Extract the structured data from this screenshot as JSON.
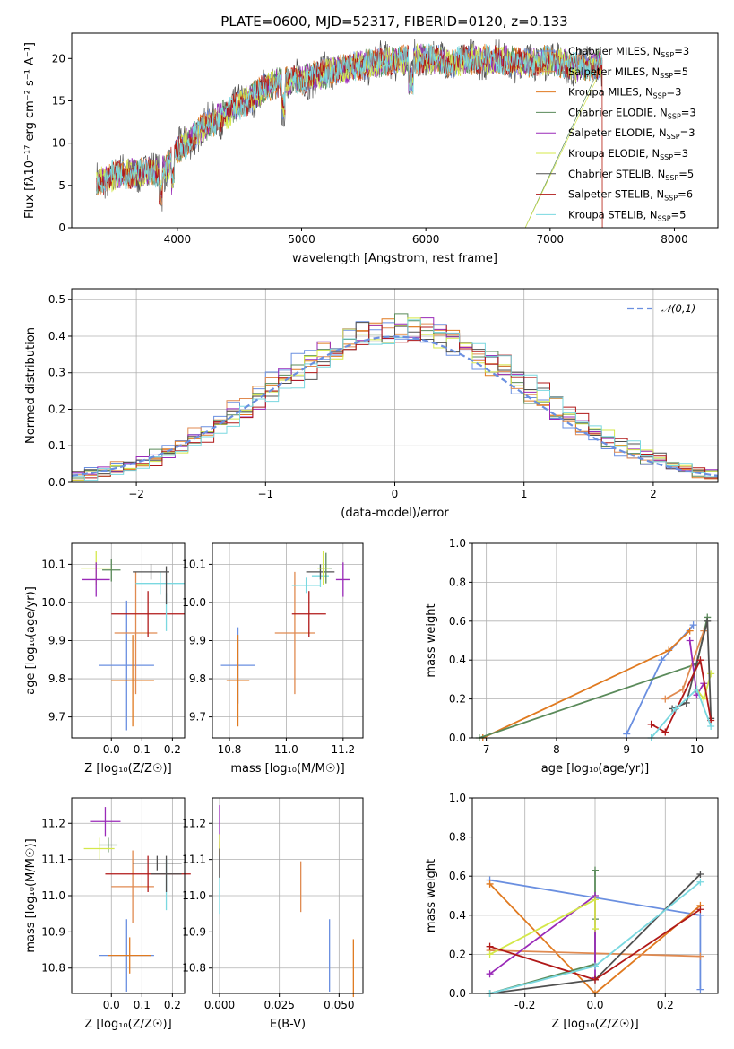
{
  "title": "PLATE=0600, MJD=52317, FIBERID=0120, z=0.133",
  "models": [
    {
      "name": "Chabrier MILES, Nₛₛₚ=3",
      "color": "#6a8fe0"
    },
    {
      "name": "Salpeter MILES, NSSP=5",
      "color": "#e08a50"
    },
    {
      "name": "Kroupa MILES, NSSP=3",
      "color": "#e07a20"
    },
    {
      "name": "Chabrier ELODIE, NSSP=3",
      "color": "#5a8a5a"
    },
    {
      "name": "Salpeter ELODIE, NSSP=3",
      "color": "#9a2ab8"
    },
    {
      "name": "Kroupa ELODIE, NSSP=3",
      "color": "#d4e84a"
    },
    {
      "name": "Chabrier STELIB, NSSP=5",
      "color": "#505050"
    },
    {
      "name": "Salpeter STELIB, NSSP=6",
      "color": "#b01818"
    },
    {
      "name": "Kroupa STELIB, NSSP=5",
      "color": "#7ad8e0"
    }
  ],
  "chart_data": [
    {
      "type": "line",
      "xlabel": "wavelength [Angstrom, rest frame]",
      "ylabel": "Flux [fλ10⁻¹⁷ erg cm⁻² s⁻¹ A⁻¹]",
      "xlim": [
        3150,
        8350
      ],
      "ylim": [
        0,
        23
      ],
      "xticks": [
        4000,
        5000,
        6000,
        7000,
        8000
      ],
      "yticks": [
        0,
        5,
        10,
        15,
        20
      ],
      "legend_position": "upper-right",
      "legend": [
        "Chabrier MILES, N",
        "Salpeter MILES, N",
        "Kroupa MILES, N",
        "Chabrier ELODIE, N",
        "Salpeter ELODIE, N",
        "Kroupa ELODIE, N",
        "Chabrier STELIB, N",
        "Salpeter STELIB, N",
        "Kroupa STELIB, N"
      ],
      "legend_nssp": [
        "3",
        "5",
        "3",
        "3",
        "3",
        "3",
        "5",
        "6",
        "5"
      ],
      "continuum": {
        "x": [
          3350,
          3500,
          3700,
          3900,
          4000,
          4200,
          4400,
          4600,
          4800,
          5000,
          5200,
          5400,
          5600,
          5800,
          6000,
          6200,
          6400,
          6600,
          6800,
          7000,
          7200,
          7400
        ],
        "y": [
          5.5,
          6.2,
          6.5,
          6.8,
          9.0,
          11.8,
          13.5,
          15.5,
          17.2,
          17.5,
          18.3,
          19.0,
          19.5,
          19.8,
          20.0,
          19.5,
          20.0,
          19.8,
          19.5,
          19.8,
          19.0,
          19.3
        ]
      }
    },
    {
      "type": "histogram",
      "xlabel": "(data-model)/error",
      "ylabel": "Normed distribution",
      "xlim": [
        -2.5,
        2.5
      ],
      "ylim": [
        0,
        0.53
      ],
      "xticks": [
        -2,
        -1,
        0,
        1,
        2
      ],
      "yticks": [
        0.0,
        0.1,
        0.2,
        0.3,
        0.4,
        0.5
      ],
      "legend": "𝒩(0,1)",
      "legend_position": "upper-right",
      "bin_width": 0.1
    },
    {
      "type": "errorbar",
      "xlabel": "Z [log₁₀(Z/Z☉)]",
      "ylabel": "age  [log₁₀(age/yr)]",
      "xlim": [
        -0.13,
        0.24
      ],
      "ylim": [
        9.645,
        10.155
      ],
      "xticks": [
        0.0,
        0.1,
        0.2
      ],
      "yticks": [
        9.7,
        9.8,
        9.9,
        10.0,
        10.1
      ],
      "points": [
        {
          "x": 0.05,
          "y": 9.835,
          "xerr": 0.09,
          "yerr": 0.17,
          "model": 0
        },
        {
          "x": 0.07,
          "y": 9.795,
          "xerr": 0.07,
          "yerr": 0.12,
          "model": 2
        },
        {
          "x": 0.08,
          "y": 9.92,
          "xerr": 0.07,
          "yerr": 0.16,
          "model": 1
        },
        {
          "x": 0.12,
          "y": 9.97,
          "xerr": 0.12,
          "yerr": 0.06,
          "model": 7
        },
        {
          "x": 0.18,
          "y": 9.975,
          "xerr": 0.0,
          "yerr": 0.05,
          "model": 8
        },
        {
          "x": 0.16,
          "y": 10.05,
          "xerr": 0.08,
          "yerr": 0.03,
          "model": 8
        },
        {
          "x": 0.13,
          "y": 10.08,
          "xerr": 0.06,
          "yerr": 0.02,
          "model": 6
        },
        {
          "x": 0.0,
          "y": 10.085,
          "xerr": 0.03,
          "yerr": 0.03,
          "model": 3
        },
        {
          "x": -0.05,
          "y": 10.09,
          "xerr": 0.05,
          "yerr": 0.045,
          "model": 5
        },
        {
          "x": -0.05,
          "y": 10.06,
          "xerr": 0.045,
          "yerr": 0.045,
          "model": 4
        },
        {
          "x": 0.18,
          "y": 10.045,
          "xerr": 0.0,
          "yerr": 0.05,
          "model": 6
        }
      ]
    },
    {
      "type": "errorbar",
      "xlabel": "mass [log₁₀(M/M☉)]",
      "ylabel": "",
      "xlim": [
        10.74,
        11.27
      ],
      "ylim": [
        9.645,
        10.155
      ],
      "xticks": [
        10.8,
        11.0,
        11.2
      ],
      "yticks": [
        9.7,
        9.8,
        9.9,
        10.0,
        10.1
      ],
      "points": [
        {
          "x": 10.83,
          "y": 9.835,
          "xerr": 0.06,
          "yerr": 0.1,
          "model": 0
        },
        {
          "x": 10.83,
          "y": 9.795,
          "xerr": 0.04,
          "yerr": 0.12,
          "model": 2
        },
        {
          "x": 11.03,
          "y": 9.92,
          "xerr": 0.07,
          "yerr": 0.16,
          "model": 1
        },
        {
          "x": 11.08,
          "y": 9.97,
          "xerr": 0.06,
          "yerr": 0.06,
          "model": 7
        },
        {
          "x": 11.12,
          "y": 10.07,
          "xerr": 0.03,
          "yerr": 0.03,
          "model": 8
        },
        {
          "x": 11.07,
          "y": 10.045,
          "xerr": 0.05,
          "yerr": 0.02,
          "model": 8
        },
        {
          "x": 11.12,
          "y": 10.08,
          "xerr": 0.05,
          "yerr": 0.02,
          "model": 6
        },
        {
          "x": 11.14,
          "y": 10.09,
          "xerr": 0.02,
          "yerr": 0.04,
          "model": 3
        },
        {
          "x": 11.13,
          "y": 10.09,
          "xerr": 0.02,
          "yerr": 0.045,
          "model": 5
        },
        {
          "x": 11.2,
          "y": 10.06,
          "xerr": 0.025,
          "yerr": 0.045,
          "model": 4
        }
      ]
    },
    {
      "type": "line",
      "xlabel": "age  [log₁₀(age/yr)]",
      "ylabel": "mass weight",
      "xlim": [
        6.8,
        10.3
      ],
      "ylim": [
        0,
        1
      ],
      "xticks": [
        7,
        8,
        9,
        10
      ],
      "yticks": [
        0.0,
        0.2,
        0.4,
        0.6,
        0.8,
        1.0
      ],
      "series": [
        {
          "model": 0,
          "x": [
            9.0,
            9.5,
            9.95
          ],
          "y": [
            0.02,
            0.4,
            0.58
          ]
        },
        {
          "model": 2,
          "x": [
            6.95,
            9.6,
            9.9
          ],
          "y": [
            0.0,
            0.45,
            0.55
          ]
        },
        {
          "model": 3,
          "x": [
            6.9,
            10.0,
            10.15
          ],
          "y": [
            0.0,
            0.38,
            0.62
          ]
        },
        {
          "model": 1,
          "x": [
            9.55,
            9.8,
            10.1
          ],
          "y": [
            0.2,
            0.25,
            0.55
          ]
        },
        {
          "model": 4,
          "x": [
            9.9,
            10.0,
            10.1
          ],
          "y": [
            0.5,
            0.22,
            0.28
          ]
        },
        {
          "model": 5,
          "x": [
            10.0,
            10.1,
            10.2
          ],
          "y": [
            0.25,
            0.2,
            0.33
          ]
        },
        {
          "model": 6,
          "x": [
            9.65,
            9.85,
            10.15,
            10.2
          ],
          "y": [
            0.15,
            0.18,
            0.6,
            0.1
          ]
        },
        {
          "model": 7,
          "x": [
            9.35,
            9.55,
            10.05,
            10.2
          ],
          "y": [
            0.07,
            0.03,
            0.4,
            0.09
          ]
        },
        {
          "model": 8,
          "x": [
            9.35,
            9.7,
            10.0,
            10.2
          ],
          "y": [
            0.0,
            0.15,
            0.25,
            0.06
          ]
        }
      ]
    },
    {
      "type": "errorbar",
      "xlabel": "Z [log₁₀(Z/Z☉)]",
      "ylabel": "mass [log₁₀(M/M☉)]",
      "xlim": [
        -0.13,
        0.24
      ],
      "ylim": [
        10.73,
        11.27
      ],
      "xticks": [
        0.0,
        0.1,
        0.2
      ],
      "yticks": [
        10.8,
        10.9,
        11.0,
        11.1,
        11.2
      ],
      "points": [
        {
          "x": 0.05,
          "y": 10.835,
          "xerr": 0.09,
          "yerr": 0.1,
          "model": 0
        },
        {
          "x": 0.06,
          "y": 10.835,
          "xerr": 0.07,
          "yerr": 0.05,
          "model": 2
        },
        {
          "x": 0.07,
          "y": 11.025,
          "xerr": 0.07,
          "yerr": 0.1,
          "model": 1
        },
        {
          "x": 0.12,
          "y": 11.06,
          "xerr": 0.14,
          "yerr": 0.05,
          "model": 7
        },
        {
          "x": 0.15,
          "y": 11.09,
          "xerr": 0.08,
          "yerr": 0.02,
          "model": 6
        },
        {
          "x": 0.18,
          "y": 11.03,
          "xerr": 0.0,
          "yerr": 0.07,
          "model": 8
        },
        {
          "x": 0.18,
          "y": 11.06,
          "xerr": 0.05,
          "yerr": 0.05,
          "model": 6
        },
        {
          "x": -0.01,
          "y": 11.14,
          "xerr": 0.03,
          "yerr": 0.02,
          "model": 3
        },
        {
          "x": -0.04,
          "y": 11.13,
          "xerr": 0.05,
          "yerr": 0.03,
          "model": 5
        },
        {
          "x": -0.02,
          "y": 11.205,
          "xerr": 0.05,
          "yerr": 0.04,
          "model": 4
        }
      ]
    },
    {
      "type": "errorbar",
      "xlabel": "E(B-V)",
      "ylabel": "",
      "xlim": [
        -0.003,
        0.06
      ],
      "ylim": [
        10.73,
        11.27
      ],
      "xticks": [
        0.0,
        0.025,
        0.05
      ],
      "yticks": [
        10.8,
        10.9,
        11.0,
        11.1,
        11.2
      ],
      "points": [
        {
          "x": 0.046,
          "y": 10.835,
          "xerr": 0,
          "yerr": 0.1,
          "model": 0
        },
        {
          "x": 0.056,
          "y": 10.8,
          "xerr": 0,
          "yerr": 0.08,
          "model": 2
        },
        {
          "x": 0.034,
          "y": 11.025,
          "xerr": 0,
          "yerr": 0.07,
          "model": 1
        },
        {
          "x": 0.0,
          "y": 11.1,
          "xerr": 0,
          "yerr": 0.05,
          "model": 7
        },
        {
          "x": 0.0,
          "y": 11.03,
          "xerr": 0,
          "yerr": 0.08,
          "model": 8
        },
        {
          "x": 0.0,
          "y": 11.2,
          "xerr": 0,
          "yerr": 0.05,
          "model": 4
        },
        {
          "x": 0.0,
          "y": 11.14,
          "xerr": 0,
          "yerr": 0.03,
          "model": 5
        },
        {
          "x": 0.0,
          "y": 11.09,
          "xerr": 0,
          "yerr": 0.04,
          "model": 6
        }
      ]
    },
    {
      "type": "line",
      "xlabel": "Z [log₁₀(Z/Z☉)]",
      "ylabel": "mass weight",
      "xlim": [
        -0.35,
        0.35
      ],
      "ylim": [
        0,
        1
      ],
      "xticks": [
        -0.2,
        0.0,
        0.2
      ],
      "yticks": [
        0.0,
        0.2,
        0.4,
        0.6,
        0.8,
        1.0
      ],
      "series": [
        {
          "model": 0,
          "x": [
            -0.3,
            0.3,
            0.3
          ],
          "y": [
            0.58,
            0.4,
            0.02
          ]
        },
        {
          "model": 2,
          "x": [
            -0.3,
            0.0,
            0.3
          ],
          "y": [
            0.56,
            0.0,
            0.45
          ]
        },
        {
          "model": 1,
          "x": [
            -0.3,
            0.3
          ],
          "y": [
            0.22,
            0.19
          ]
        },
        {
          "model": 3,
          "x": [
            -0.3,
            0.0,
            0.0,
            0.0
          ],
          "y": [
            0.0,
            0.15,
            0.63,
            0.38
          ]
        },
        {
          "model": 4,
          "x": [
            -0.3,
            0.0,
            0.0
          ],
          "y": [
            0.1,
            0.5,
            0.08
          ]
        },
        {
          "model": 5,
          "x": [
            -0.3,
            0.0,
            0.0
          ],
          "y": [
            0.2,
            0.48,
            0.33
          ]
        },
        {
          "model": 6,
          "x": [
            -0.3,
            0.0,
            0.3
          ],
          "y": [
            0.0,
            0.07,
            0.61
          ]
        },
        {
          "model": 7,
          "x": [
            -0.3,
            0.0,
            0.3
          ],
          "y": [
            0.24,
            0.07,
            0.43
          ]
        },
        {
          "model": 8,
          "x": [
            -0.3,
            0.0,
            0.3
          ],
          "y": [
            0.0,
            0.14,
            0.57
          ]
        }
      ]
    }
  ]
}
